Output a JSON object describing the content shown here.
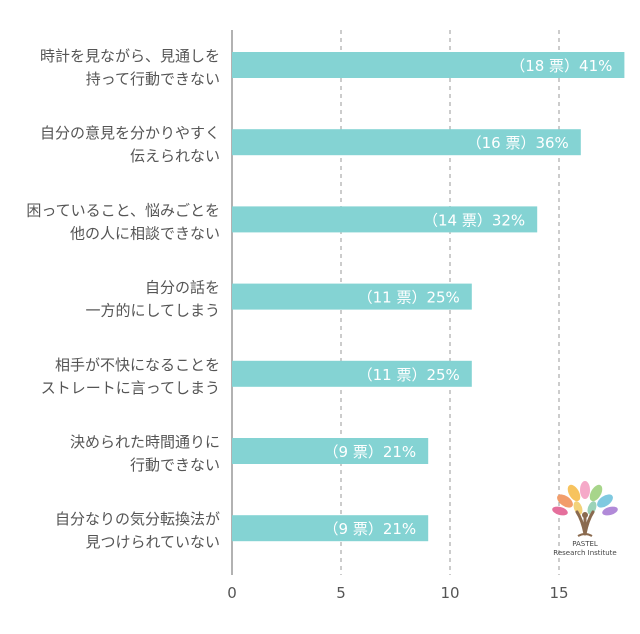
{
  "chart_data": {
    "type": "bar",
    "orientation": "horizontal",
    "categories": [
      [
        "時計を見ながら、見通しを",
        "持って行動できない"
      ],
      [
        "自分の意見を分かりやすく",
        "伝えられない"
      ],
      [
        "困っていること、悩みごとを",
        "他の人に相談できない"
      ],
      [
        "自分の話を",
        "一方的にしてしまう"
      ],
      [
        "相手が不快になることを",
        "ストレートに言ってしまう"
      ],
      [
        "決められた時間通りに",
        "行動できない"
      ],
      [
        "自分なりの気分転換法が",
        "見つけられていない"
      ]
    ],
    "values": [
      18,
      16,
      14,
      11,
      11,
      9,
      9
    ],
    "data_labels": [
      "（18 票）41%",
      "（16 票）36%",
      "（14 票）32%",
      "（11 票）25%",
      "（11 票）25%",
      "（9 票）21%",
      "（9 票）21%"
    ],
    "xlim": [
      0,
      18
    ],
    "xticks": [
      0,
      5,
      10,
      15
    ],
    "grid": "vertical dashed",
    "bar_color": "#84d3d3",
    "grid_color": "#999999",
    "text_color": "#555555"
  },
  "logo": {
    "line1": "PASTEL",
    "line2": "Research Institute"
  }
}
